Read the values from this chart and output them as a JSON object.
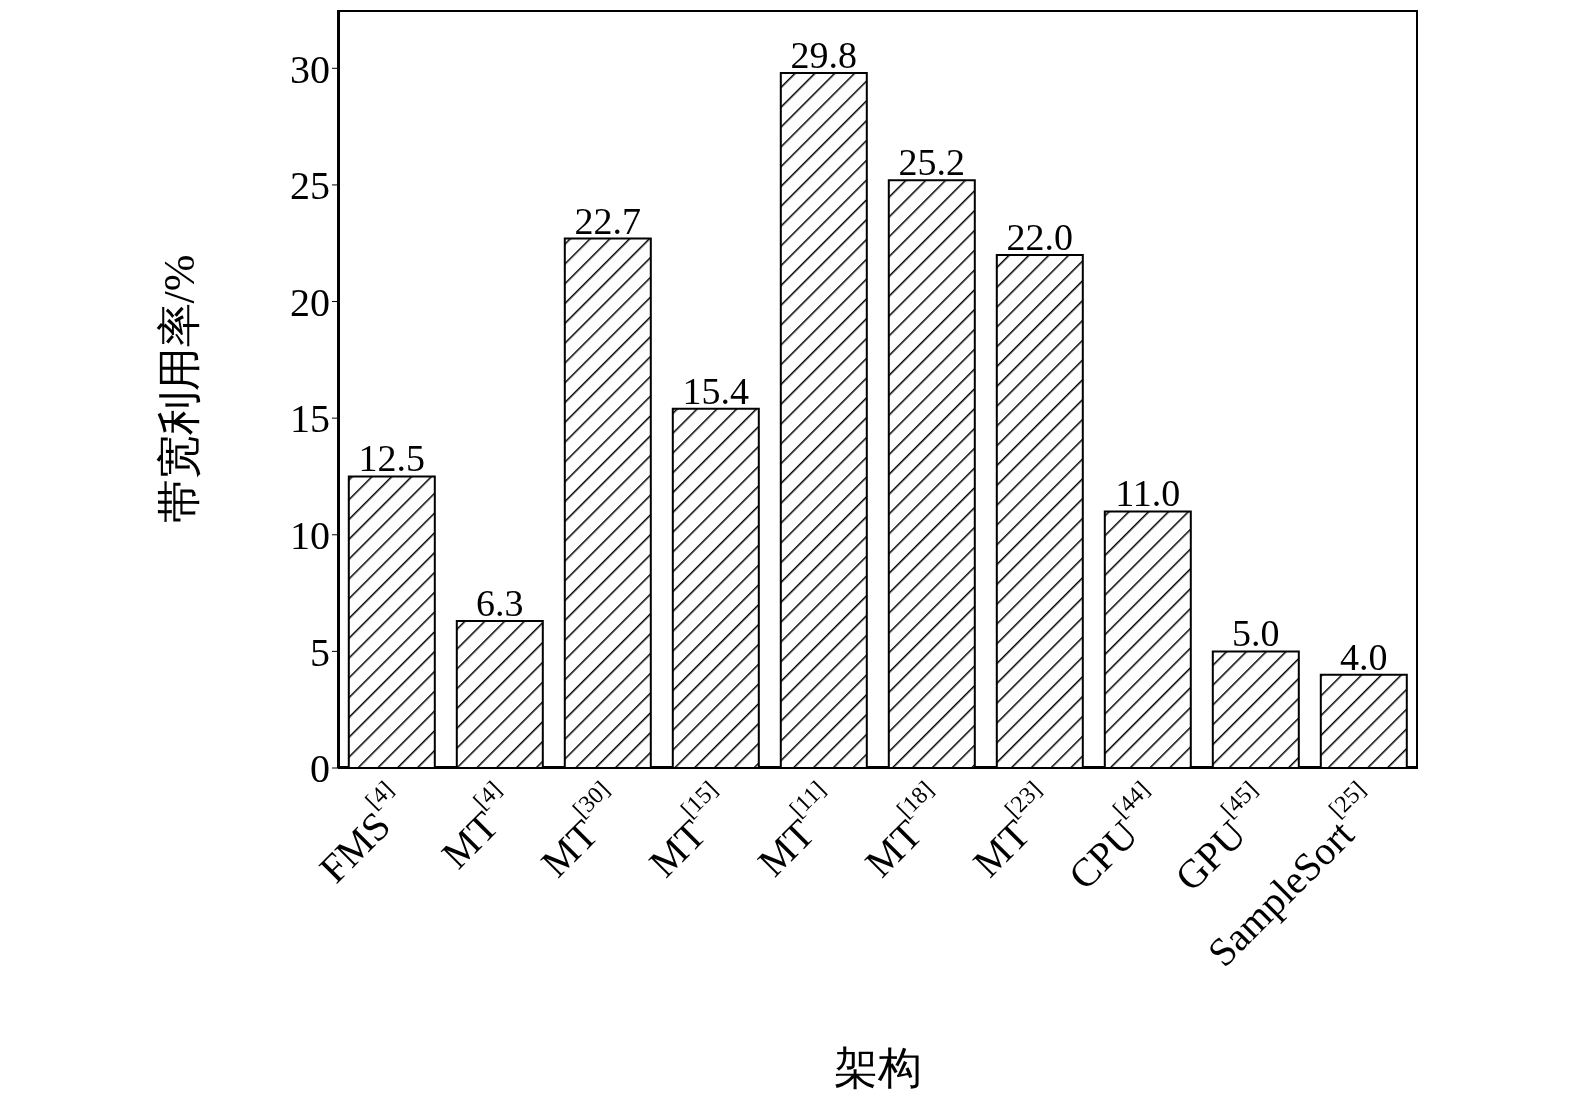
{
  "chart_data": {
    "type": "bar",
    "xlabel": "架构",
    "ylabel": "带宽利用率/%",
    "categories": [
      "FMS$^{[4]}$",
      "MT$^{[4]}$",
      "MT$^{[30]}$",
      "MT$^{[15]}$",
      "MT$^{[11]}$",
      "MT$^{[18]}$",
      "MT$^{[23]}$",
      "CPU$^{[44]}$",
      "GPU$^{[45]}$",
      "SampleSort$^{[25]}$"
    ],
    "values": [
      12.5,
      6.3,
      22.7,
      15.4,
      29.8,
      25.2,
      22.0,
      11.0,
      5.0,
      4.0
    ],
    "value_labels": [
      "12.5",
      "6.3",
      "22.7",
      "15.4",
      "29.8",
      "25.2",
      "22.0",
      "11.0",
      "5.0",
      "4.0"
    ],
    "color": "#000000",
    "ylim": [
      0,
      32.5
    ],
    "yticks": [
      0,
      5,
      10,
      15,
      20,
      25,
      30
    ],
    "grid": false
  }
}
